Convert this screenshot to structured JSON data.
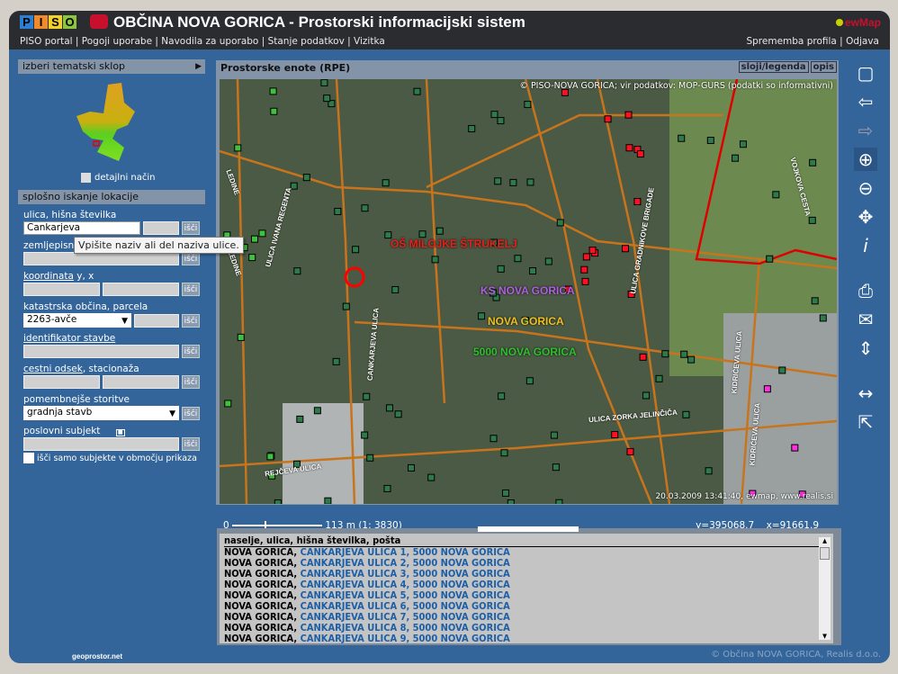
{
  "header": {
    "logo": [
      "P",
      "I",
      "S",
      "O"
    ],
    "logo_colors": [
      "#2a7fd4",
      "#f08a2a",
      "#f2d22a",
      "#8cc63f"
    ],
    "title": "OBČINA NOVA GORICA - Prostorski informacijski sistem",
    "brand": "ewMap",
    "nav": [
      "PISO portal",
      "Pogoji uporabe",
      "Navodila za uporabo",
      "Stanje podatkov",
      "Vizitka"
    ],
    "nav_right": [
      "Sprememba profila",
      "Odjava"
    ]
  },
  "left": {
    "theme_header": "izberi tematski sklop",
    "detail_mode": "detajlni način",
    "search_header": "splošno iskanje lokacije",
    "street_label": "ulica, hišna številka",
    "street_value": "Cankarjeva",
    "geo_label": "zemljepisno ime",
    "coord_link": "koordinata",
    "coord_suffix": " y, x",
    "cadastre_label": "katastrska občina, parcela",
    "cadastre_value": "2263-avče",
    "building_id": "identifikator stavbe",
    "road_link": "cestni odsek",
    "road_suffix": ", stacionaža",
    "services_label": "pomembnejše storitve",
    "services_value": "gradnja stavb",
    "business_label": "poslovni subjekt",
    "only_area": "išči samo subjekte v območju prikaza",
    "search_btn": "išči",
    "tooltip": "Vpišite naziv ali del naziva ulice."
  },
  "map": {
    "title": "Prostorske enote (RPE)",
    "tabs": [
      "sloji/legenda",
      "opis"
    ],
    "copyright": "© PISO-NOVA GORICA; vir podatkov: MOP-GURS (podatki so informativni)",
    "stamp": "20.03.2009 13:41:40, ewmap, www.realis.si",
    "labels": {
      "school": "OŠ MILOJKE ŠTRUKELJ",
      "ks": "KS NOVA GORICA",
      "town": "NOVA GORICA",
      "post": "5000 NOVA GORICA"
    },
    "label_colors": {
      "school": "#e8201a",
      "ks": "#b060e0",
      "town": "#f0c020",
      "post": "#30c030"
    },
    "streets": [
      "LEDINE",
      "ULICA IVANA REGENTA",
      "LEDINE",
      "CANKARJEVA ULICA",
      "ULICA GRADNIKOVE BRIGADE",
      "VOJKOVA CESTA",
      "KIDRIČEVA ULICA",
      "KIDRIČEVA ULICA",
      "ULICA ZORKA JELINČIČA",
      "REJČEVA ULICA"
    ],
    "scale_zero": "0",
    "scale_text": "113 m (1: ",
    "scale_ratio": "3830",
    "scale_close": ")",
    "coord_y": "y=395068.7",
    "coord_x": "x=91661.9"
  },
  "tools": [
    "overview-map",
    "back",
    "forward",
    "zoom-in",
    "zoom-out",
    "pan",
    "info",
    "print",
    "email",
    "resize",
    "measure",
    "dkn"
  ],
  "results": {
    "header": "naselje, ulica, hišna številka, pošta",
    "items": [
      {
        "place": "NOVA GORICA",
        "address": "CANKARJEVA ULICA 1, 5000 NOVA GORICA"
      },
      {
        "place": "NOVA GORICA",
        "address": "CANKARJEVA ULICA 2, 5000 NOVA GORICA"
      },
      {
        "place": "NOVA GORICA",
        "address": "CANKARJEVA ULICA 3, 5000 NOVA GORICA"
      },
      {
        "place": "NOVA GORICA",
        "address": "CANKARJEVA ULICA 4, 5000 NOVA GORICA"
      },
      {
        "place": "NOVA GORICA",
        "address": "CANKARJEVA ULICA 5, 5000 NOVA GORICA"
      },
      {
        "place": "NOVA GORICA",
        "address": "CANKARJEVA ULICA 6, 5000 NOVA GORICA"
      },
      {
        "place": "NOVA GORICA",
        "address": "CANKARJEVA ULICA 7, 5000 NOVA GORICA"
      },
      {
        "place": "NOVA GORICA",
        "address": "CANKARJEVA ULICA 8, 5000 NOVA GORICA"
      },
      {
        "place": "NOVA GORICA",
        "address": "CANKARJEVA ULICA 9, 5000 NOVA GORICA"
      }
    ]
  },
  "footer": {
    "copyright": "© Občina NOVA GORICA, Realis d.o.o.",
    "geoprostor": "geoprostor.net"
  }
}
